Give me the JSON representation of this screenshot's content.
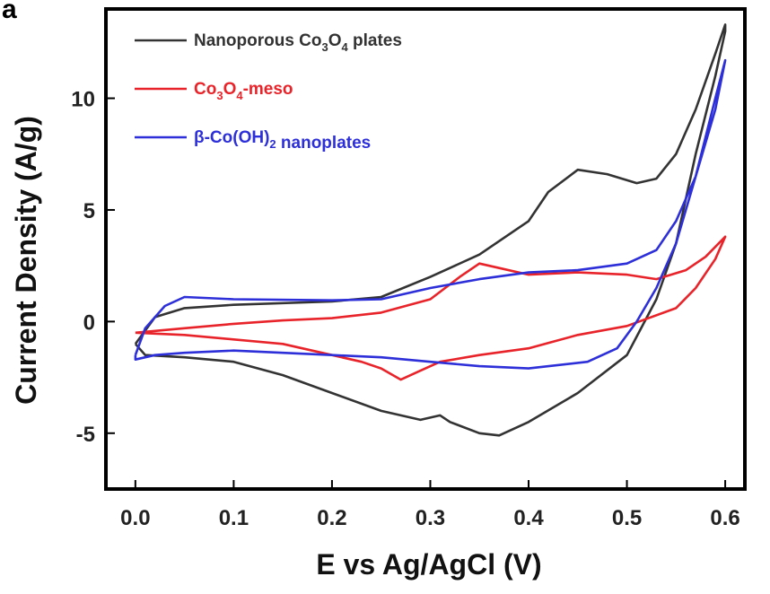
{
  "chart_data": {
    "type": "line",
    "panel_label": "a",
    "xlabel": "E vs Ag/AgCl (V)",
    "ylabel": "Current Density (A/g)",
    "xlim": [
      -0.03,
      0.62
    ],
    "ylim": [
      -7.5,
      14
    ],
    "x_ticks": [
      0.0,
      0.1,
      0.2,
      0.3,
      0.4,
      0.5,
      0.6
    ],
    "x_tick_labels": [
      "0.0",
      "0.1",
      "0.2",
      "0.3",
      "0.4",
      "0.5",
      "0.6"
    ],
    "y_ticks": [
      -5,
      0,
      5,
      10
    ],
    "y_tick_labels": [
      "-5",
      "0",
      "5",
      "10"
    ],
    "legend_position": "top-left",
    "grid": false,
    "series": [
      {
        "name": "Nanoporous Co3O4 plates",
        "legend_parts": [
          "Nanoporous Co",
          "3",
          "O",
          "4",
          " plates"
        ],
        "color": "#333333",
        "points": [
          [
            0.0,
            -1.0
          ],
          [
            0.02,
            0.2
          ],
          [
            0.05,
            0.6
          ],
          [
            0.1,
            0.75
          ],
          [
            0.2,
            0.9
          ],
          [
            0.25,
            1.1
          ],
          [
            0.3,
            2.0
          ],
          [
            0.35,
            3.0
          ],
          [
            0.4,
            4.5
          ],
          [
            0.42,
            5.8
          ],
          [
            0.45,
            6.8
          ],
          [
            0.48,
            6.6
          ],
          [
            0.51,
            6.2
          ],
          [
            0.53,
            6.4
          ],
          [
            0.55,
            7.5
          ],
          [
            0.57,
            9.5
          ],
          [
            0.59,
            12.0
          ],
          [
            0.6,
            13.3
          ],
          [
            0.6,
            13.0
          ],
          [
            0.59,
            11.0
          ],
          [
            0.57,
            7.5
          ],
          [
            0.55,
            3.5
          ],
          [
            0.53,
            1.0
          ],
          [
            0.5,
            -1.5
          ],
          [
            0.45,
            -3.2
          ],
          [
            0.4,
            -4.5
          ],
          [
            0.37,
            -5.1
          ],
          [
            0.35,
            -5.0
          ],
          [
            0.32,
            -4.5
          ],
          [
            0.31,
            -4.2
          ],
          [
            0.29,
            -4.4
          ],
          [
            0.25,
            -4.0
          ],
          [
            0.2,
            -3.2
          ],
          [
            0.15,
            -2.4
          ],
          [
            0.1,
            -1.8
          ],
          [
            0.05,
            -1.6
          ],
          [
            0.01,
            -1.5
          ],
          [
            0.0,
            -1.0
          ]
        ]
      },
      {
        "name": "Co3O4-meso",
        "legend_parts": [
          "Co",
          "3",
          "O",
          "4",
          "-meso"
        ],
        "color": "#e8242a",
        "points": [
          [
            0.0,
            -0.5
          ],
          [
            0.05,
            -0.3
          ],
          [
            0.1,
            -0.1
          ],
          [
            0.15,
            0.05
          ],
          [
            0.2,
            0.15
          ],
          [
            0.25,
            0.4
          ],
          [
            0.3,
            1.0
          ],
          [
            0.33,
            2.0
          ],
          [
            0.35,
            2.6
          ],
          [
            0.37,
            2.4
          ],
          [
            0.4,
            2.1
          ],
          [
            0.45,
            2.2
          ],
          [
            0.5,
            2.1
          ],
          [
            0.53,
            1.9
          ],
          [
            0.56,
            2.3
          ],
          [
            0.58,
            2.9
          ],
          [
            0.6,
            3.8
          ],
          [
            0.59,
            2.8
          ],
          [
            0.57,
            1.5
          ],
          [
            0.55,
            0.6
          ],
          [
            0.5,
            -0.2
          ],
          [
            0.45,
            -0.6
          ],
          [
            0.4,
            -1.2
          ],
          [
            0.35,
            -1.5
          ],
          [
            0.31,
            -1.8
          ],
          [
            0.29,
            -2.2
          ],
          [
            0.27,
            -2.6
          ],
          [
            0.25,
            -2.1
          ],
          [
            0.23,
            -1.8
          ],
          [
            0.2,
            -1.5
          ],
          [
            0.15,
            -1.0
          ],
          [
            0.1,
            -0.8
          ],
          [
            0.05,
            -0.6
          ],
          [
            0.0,
            -0.5
          ]
        ]
      },
      {
        "name": "β-Co(OH)2 nanoplates",
        "legend_parts": [
          "β-Co(OH)",
          "2",
          "",
          "",
          " nanoplates"
        ],
        "color": "#2d2fd8",
        "points": [
          [
            0.0,
            -1.5
          ],
          [
            0.01,
            -0.3
          ],
          [
            0.03,
            0.7
          ],
          [
            0.05,
            1.1
          ],
          [
            0.1,
            1.0
          ],
          [
            0.2,
            0.95
          ],
          [
            0.25,
            1.0
          ],
          [
            0.3,
            1.5
          ],
          [
            0.35,
            1.9
          ],
          [
            0.4,
            2.2
          ],
          [
            0.45,
            2.3
          ],
          [
            0.5,
            2.6
          ],
          [
            0.53,
            3.2
          ],
          [
            0.55,
            4.5
          ],
          [
            0.57,
            6.5
          ],
          [
            0.59,
            9.5
          ],
          [
            0.6,
            11.7
          ],
          [
            0.59,
            10.0
          ],
          [
            0.57,
            6.5
          ],
          [
            0.55,
            3.5
          ],
          [
            0.53,
            1.5
          ],
          [
            0.51,
            0.0
          ],
          [
            0.49,
            -1.2
          ],
          [
            0.46,
            -1.8
          ],
          [
            0.4,
            -2.1
          ],
          [
            0.35,
            -2.0
          ],
          [
            0.3,
            -1.8
          ],
          [
            0.25,
            -1.6
          ],
          [
            0.2,
            -1.5
          ],
          [
            0.15,
            -1.4
          ],
          [
            0.1,
            -1.3
          ],
          [
            0.05,
            -1.4
          ],
          [
            0.02,
            -1.5
          ],
          [
            0.0,
            -1.7
          ],
          [
            0.0,
            -1.5
          ]
        ]
      }
    ]
  }
}
